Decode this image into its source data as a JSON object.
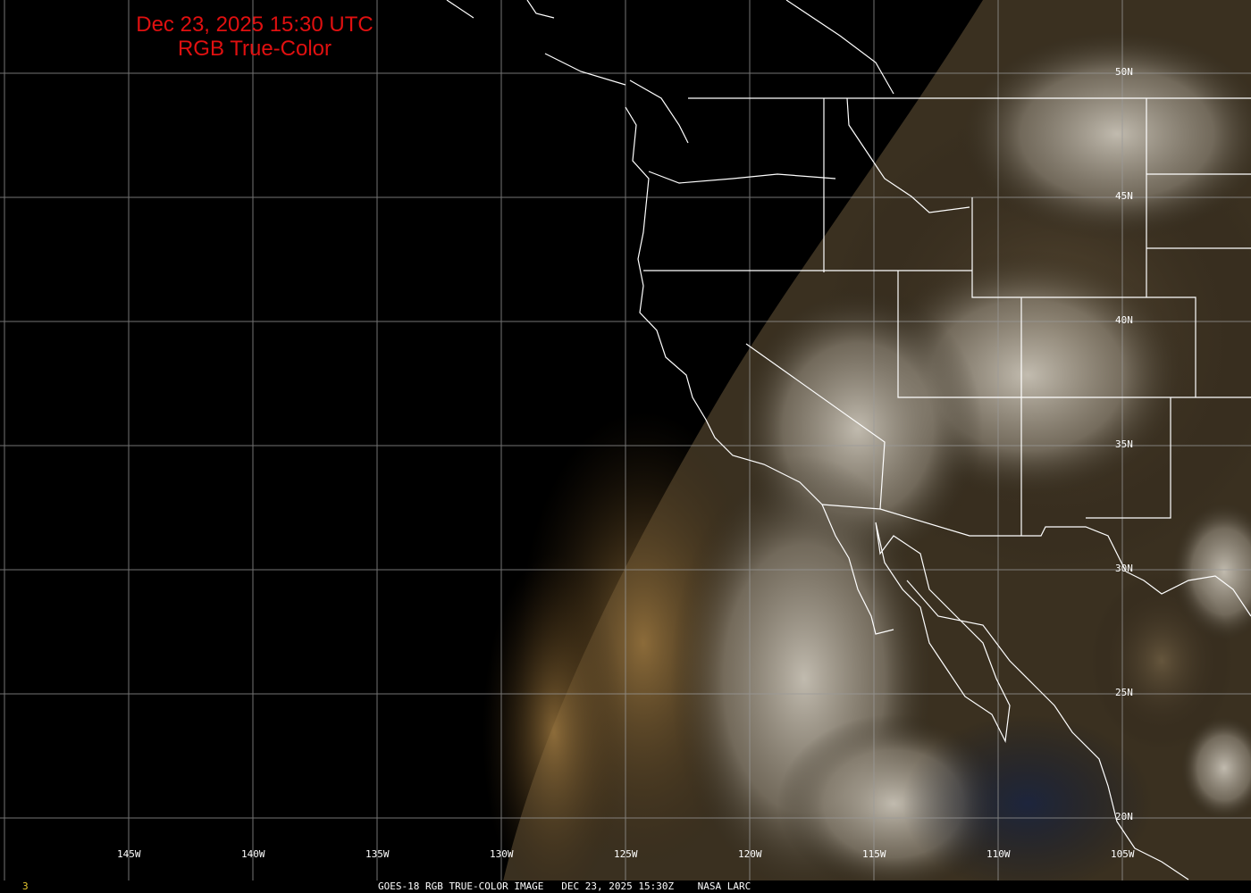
{
  "title": {
    "line1": "Dec 23, 2025 15:30 UTC",
    "line2": "RGB True-Color",
    "color": "#e01010"
  },
  "longitude_labels": [
    "145W",
    "140W",
    "135W",
    "130W",
    "125W",
    "120W",
    "115W",
    "110W",
    "105W"
  ],
  "latitude_labels": [
    "50N",
    "45N",
    "40N",
    "35N",
    "30N",
    "25N",
    "20N"
  ],
  "footer": {
    "frame_number": "3",
    "caption": "GOES-18 RGB TRUE-COLOR IMAGE   DEC 23, 2025 15:30Z    NASA LARC"
  },
  "map": {
    "satellite": "GOES-18",
    "product": "RGB True-Color",
    "grid_spacing_degrees": 5,
    "lon_range": [
      "150W",
      "103W"
    ],
    "lat_range": [
      "17N",
      "53N"
    ]
  }
}
